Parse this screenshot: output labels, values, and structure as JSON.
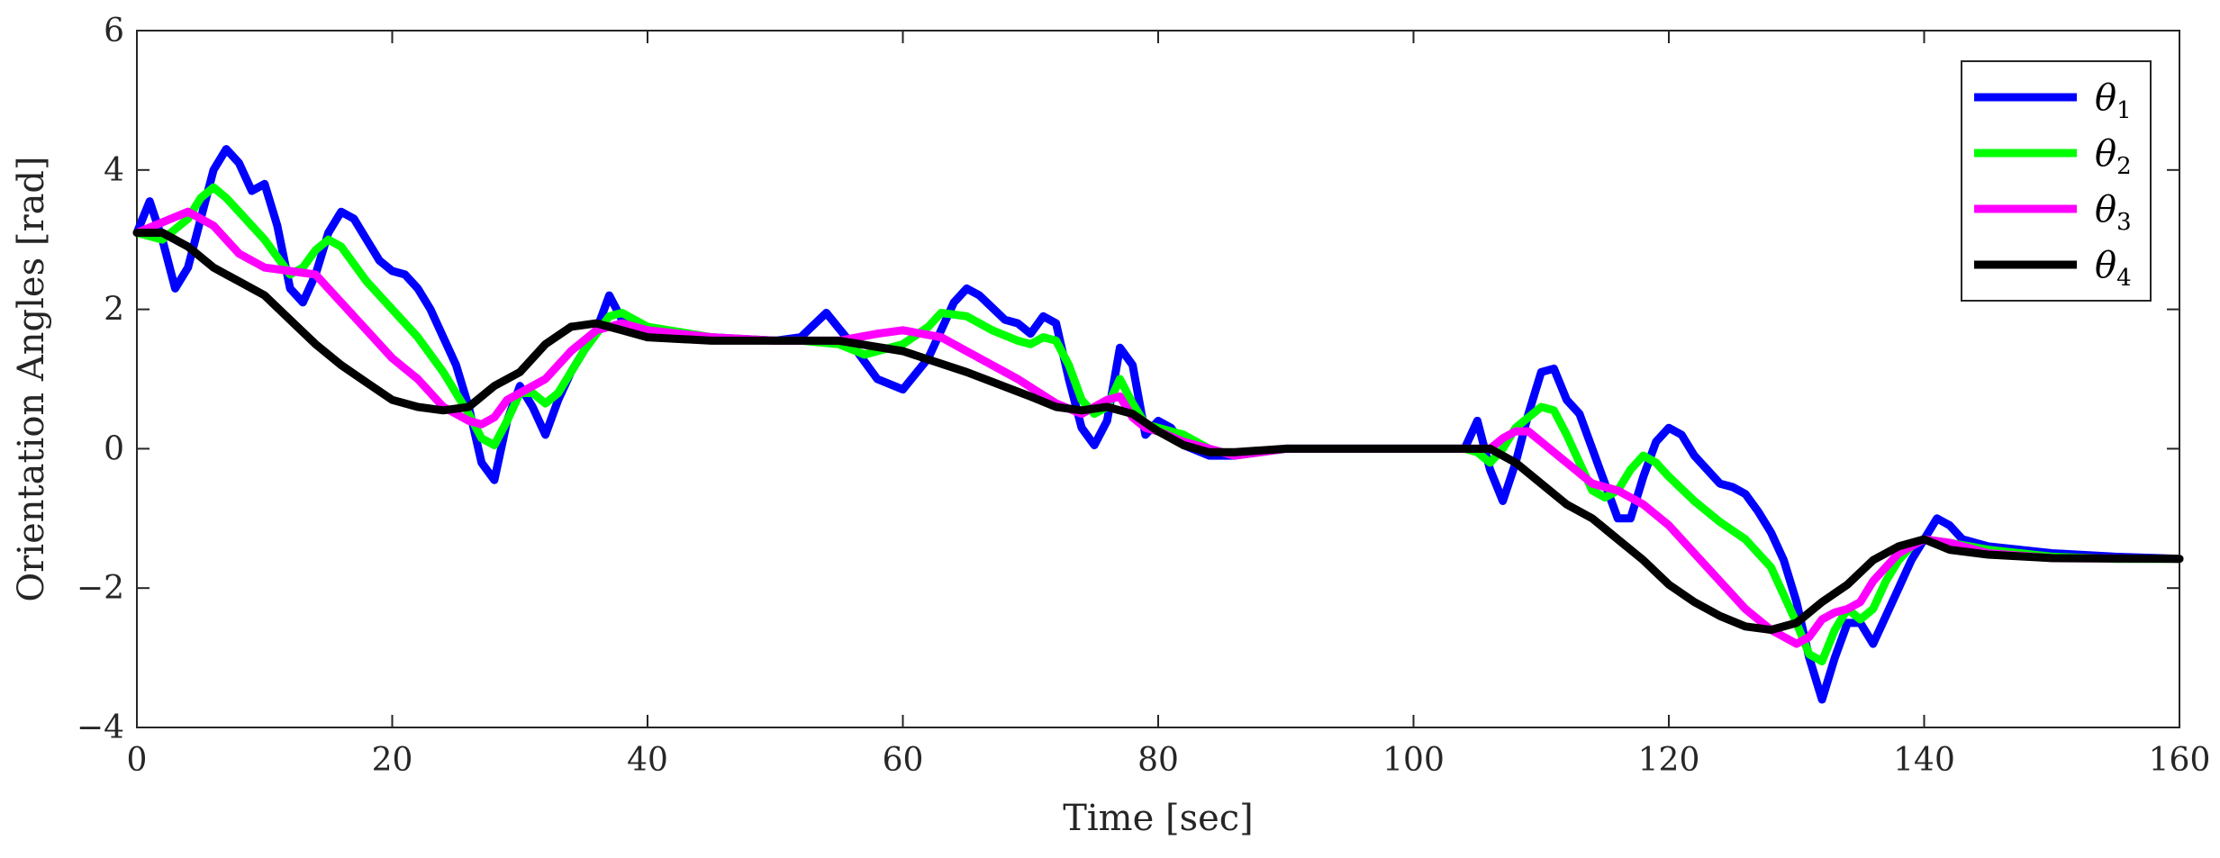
{
  "chart_data": {
    "type": "line",
    "title": "",
    "xlabel": "Time [sec]",
    "ylabel": "Orientation Angles [rad]",
    "xlim": [
      0,
      160
    ],
    "ylim": [
      -4,
      6
    ],
    "xticks": [
      0,
      20,
      40,
      60,
      80,
      100,
      120,
      140,
      160
    ],
    "yticks": [
      -4,
      -2,
      0,
      2,
      4,
      6
    ],
    "xtick_labels": [
      "0",
      "20",
      "40",
      "60",
      "80",
      "100",
      "120",
      "140",
      "160"
    ],
    "ytick_labels": [
      "−4",
      "−2",
      "0",
      "2",
      "4",
      "6"
    ],
    "legend_position": "top-right",
    "series": [
      {
        "name": "θ1",
        "symbol": "θ",
        "subscript": "1",
        "color": "#0000ff",
        "x": [
          0,
          1,
          2,
          3,
          4,
          5,
          6,
          7,
          8,
          9,
          10,
          11,
          12,
          13,
          14,
          15,
          16,
          17,
          18,
          19,
          20,
          21,
          22,
          23,
          24,
          25,
          26,
          27,
          28,
          29,
          30,
          31,
          32,
          33,
          34,
          35,
          36,
          37,
          38,
          40,
          45,
          50,
          52,
          54,
          56,
          58,
          60,
          62,
          64,
          65,
          66,
          68,
          69,
          70,
          71,
          72,
          73,
          74,
          75,
          76,
          77,
          78,
          79,
          80,
          81,
          82,
          84,
          86,
          90,
          100,
          104,
          105,
          106,
          107,
          108,
          109,
          110,
          111,
          112,
          113,
          114,
          115,
          116,
          117,
          118,
          119,
          120,
          121,
          122,
          123,
          124,
          125,
          126,
          127,
          128,
          129,
          130,
          131,
          132,
          133,
          134,
          135,
          136,
          137,
          138,
          139,
          140,
          141,
          142,
          143,
          145,
          150,
          155,
          160
        ],
        "y": [
          3.1,
          3.55,
          3.0,
          2.3,
          2.6,
          3.3,
          4.0,
          4.3,
          4.1,
          3.7,
          3.8,
          3.2,
          2.3,
          2.1,
          2.5,
          3.1,
          3.4,
          3.3,
          3.0,
          2.7,
          2.55,
          2.5,
          2.3,
          2.0,
          1.6,
          1.2,
          0.6,
          -0.2,
          -0.45,
          0.4,
          0.9,
          0.6,
          0.2,
          0.7,
          1.1,
          1.4,
          1.7,
          2.2,
          1.85,
          1.7,
          1.6,
          1.55,
          1.6,
          1.95,
          1.5,
          1.0,
          0.85,
          1.3,
          2.1,
          2.3,
          2.2,
          1.85,
          1.8,
          1.65,
          1.9,
          1.8,
          1.0,
          0.3,
          0.05,
          0.4,
          1.45,
          1.2,
          0.2,
          0.4,
          0.3,
          0.05,
          -0.1,
          -0.1,
          0.0,
          0.0,
          0.0,
          0.4,
          -0.3,
          -0.75,
          -0.2,
          0.5,
          1.1,
          1.15,
          0.7,
          0.5,
          0.0,
          -0.5,
          -1.0,
          -1.0,
          -0.4,
          0.1,
          0.3,
          0.2,
          -0.1,
          -0.3,
          -0.5,
          -0.55,
          -0.65,
          -0.9,
          -1.2,
          -1.6,
          -2.2,
          -3.0,
          -3.6,
          -3.0,
          -2.5,
          -2.5,
          -2.8,
          -2.4,
          -2.0,
          -1.6,
          -1.3,
          -1.0,
          -1.1,
          -1.3,
          -1.4,
          -1.5,
          -1.55,
          -1.58
        ]
      },
      {
        "name": "θ2",
        "symbol": "θ",
        "subscript": "2",
        "color": "#00ff00",
        "x": [
          0,
          2,
          4,
          5,
          6,
          7,
          8,
          10,
          12,
          13,
          14,
          15,
          16,
          18,
          20,
          22,
          24,
          26,
          27,
          28,
          29,
          30,
          31,
          32,
          33,
          34,
          35,
          36,
          37,
          38,
          40,
          45,
          50,
          52,
          55,
          57,
          60,
          62,
          63,
          65,
          67,
          69,
          70,
          71,
          72,
          73,
          74,
          75,
          76,
          77,
          78,
          79,
          80,
          82,
          84,
          86,
          90,
          100,
          104,
          105,
          106,
          107,
          108,
          110,
          111,
          112,
          113,
          114,
          115,
          116,
          117,
          118,
          119,
          120,
          122,
          124,
          126,
          128,
          129,
          130,
          131,
          132,
          133,
          134,
          135,
          136,
          137,
          138,
          139,
          140,
          142,
          145,
          150,
          155,
          160
        ],
        "y": [
          3.1,
          3.0,
          3.3,
          3.6,
          3.75,
          3.6,
          3.4,
          3.0,
          2.5,
          2.6,
          2.85,
          3.0,
          2.9,
          2.4,
          2.0,
          1.6,
          1.1,
          0.5,
          0.15,
          0.05,
          0.4,
          0.8,
          0.8,
          0.65,
          0.8,
          1.1,
          1.4,
          1.65,
          1.9,
          1.95,
          1.75,
          1.6,
          1.55,
          1.55,
          1.5,
          1.35,
          1.5,
          1.75,
          1.95,
          1.9,
          1.7,
          1.55,
          1.5,
          1.6,
          1.55,
          1.2,
          0.7,
          0.5,
          0.6,
          1.0,
          0.65,
          0.35,
          0.3,
          0.2,
          0.0,
          -0.1,
          0.0,
          0.0,
          0.0,
          -0.05,
          -0.2,
          0.0,
          0.3,
          0.6,
          0.55,
          0.2,
          -0.2,
          -0.6,
          -0.7,
          -0.6,
          -0.3,
          -0.1,
          -0.2,
          -0.4,
          -0.75,
          -1.05,
          -1.3,
          -1.7,
          -2.1,
          -2.5,
          -2.95,
          -3.05,
          -2.6,
          -2.3,
          -2.45,
          -2.3,
          -1.9,
          -1.6,
          -1.4,
          -1.3,
          -1.35,
          -1.45,
          -1.55,
          -1.58,
          -1.58
        ]
      },
      {
        "name": "θ3",
        "symbol": "θ",
        "subscript": "3",
        "color": "#ff00ff",
        "x": [
          0,
          2,
          4,
          6,
          8,
          10,
          12,
          14,
          16,
          18,
          20,
          22,
          24,
          26,
          27,
          28,
          29,
          30,
          32,
          34,
          36,
          38,
          40,
          45,
          50,
          55,
          58,
          60,
          63,
          66,
          69,
          72,
          74,
          76,
          77,
          78,
          79,
          80,
          82,
          84,
          86,
          90,
          100,
          104,
          106,
          107,
          108,
          109,
          110,
          112,
          114,
          116,
          118,
          120,
          122,
          124,
          126,
          128,
          130,
          131,
          132,
          133,
          134,
          135,
          136,
          138,
          140,
          142,
          145,
          150,
          160
        ],
        "y": [
          3.1,
          3.25,
          3.4,
          3.2,
          2.8,
          2.6,
          2.55,
          2.5,
          2.1,
          1.7,
          1.3,
          1.0,
          0.6,
          0.4,
          0.35,
          0.45,
          0.7,
          0.8,
          1.0,
          1.4,
          1.7,
          1.8,
          1.7,
          1.6,
          1.55,
          1.55,
          1.65,
          1.7,
          1.6,
          1.3,
          1.0,
          0.65,
          0.5,
          0.7,
          0.75,
          0.45,
          0.3,
          0.25,
          0.1,
          0.0,
          -0.1,
          0.0,
          0.0,
          0.0,
          0.0,
          0.15,
          0.25,
          0.25,
          0.1,
          -0.2,
          -0.5,
          -0.6,
          -0.8,
          -1.1,
          -1.5,
          -1.9,
          -2.3,
          -2.6,
          -2.8,
          -2.7,
          -2.45,
          -2.35,
          -2.3,
          -2.2,
          -1.9,
          -1.5,
          -1.3,
          -1.35,
          -1.5,
          -1.57,
          -1.58
        ]
      },
      {
        "name": "θ4",
        "symbol": "θ",
        "subscript": "4",
        "color": "#000000",
        "x": [
          0,
          2,
          4,
          6,
          8,
          10,
          12,
          14,
          16,
          18,
          20,
          22,
          24,
          26,
          28,
          30,
          32,
          34,
          36,
          38,
          40,
          45,
          50,
          55,
          60,
          65,
          70,
          72,
          74,
          76,
          78,
          80,
          82,
          84,
          86,
          90,
          100,
          104,
          106,
          108,
          110,
          112,
          114,
          116,
          118,
          120,
          122,
          124,
          126,
          128,
          130,
          132,
          134,
          136,
          138,
          140,
          142,
          145,
          150,
          160
        ],
        "y": [
          3.1,
          3.1,
          2.9,
          2.6,
          2.4,
          2.2,
          1.85,
          1.5,
          1.2,
          0.95,
          0.7,
          0.6,
          0.55,
          0.6,
          0.9,
          1.1,
          1.5,
          1.75,
          1.8,
          1.7,
          1.6,
          1.55,
          1.55,
          1.55,
          1.4,
          1.1,
          0.75,
          0.6,
          0.55,
          0.6,
          0.5,
          0.25,
          0.05,
          -0.05,
          -0.05,
          0.0,
          0.0,
          0.0,
          0.0,
          -0.2,
          -0.5,
          -0.8,
          -1.0,
          -1.3,
          -1.6,
          -1.95,
          -2.2,
          -2.4,
          -2.55,
          -2.6,
          -2.5,
          -2.2,
          -1.95,
          -1.6,
          -1.4,
          -1.3,
          -1.45,
          -1.52,
          -1.57,
          -1.58
        ]
      }
    ]
  }
}
